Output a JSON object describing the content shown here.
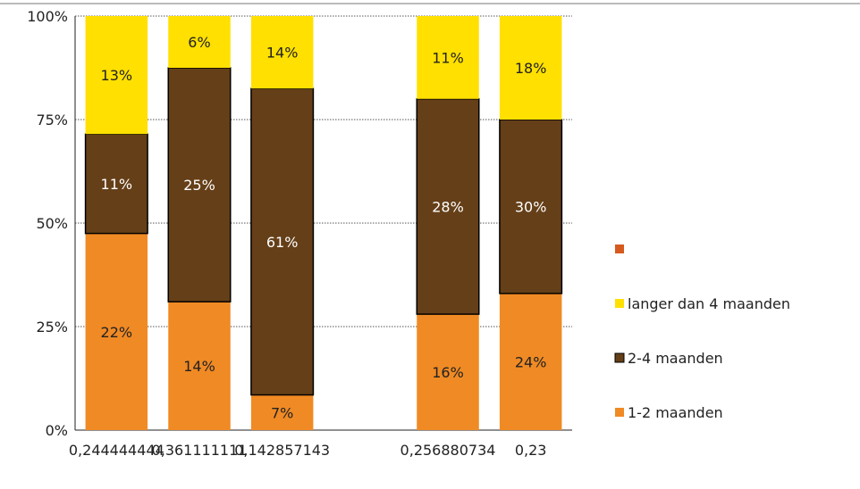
{
  "chart_data": {
    "type": "bar",
    "stacked": true,
    "categories": [
      "0,244444444",
      "0,361111111",
      "0,142857143",
      "",
      "0,256880734",
      "0,23"
    ],
    "series": [
      {
        "name": "1-2 maanden",
        "color": "#F08A24",
        "values": [
          47.5,
          31.0,
          8.5,
          null,
          28.0,
          33.0
        ],
        "labels": [
          "22%",
          "14%",
          "7%",
          "",
          "16%",
          "24%"
        ]
      },
      {
        "name": "2-4 maanden",
        "color": "#653F18",
        "values": [
          24.0,
          56.5,
          74.0,
          null,
          52.0,
          42.0
        ],
        "labels": [
          "11%",
          "25%",
          "61%",
          "",
          "28%",
          "30%"
        ]
      },
      {
        "name": "langer dan 4 maanden",
        "color": "#FFE000",
        "values": [
          28.5,
          12.5,
          17.5,
          null,
          20.0,
          25.0
        ],
        "labels": [
          "13%",
          "6%",
          "14%",
          "",
          "11%",
          "18%"
        ]
      }
    ],
    "legend_items": [
      {
        "name": "",
        "color": "#D65A1E"
      },
      {
        "name": "langer dan 4 maanden",
        "color": "#FFE000"
      },
      {
        "name": "2-4 maanden",
        "color": "#653F18"
      },
      {
        "name": "1-2 maanden",
        "color": "#F08A24"
      }
    ],
    "yticks": [
      "0%",
      "25%",
      "50%",
      "75%",
      "100%"
    ],
    "ylim": [
      0,
      100
    ],
    "grid": true,
    "legend_position": "right"
  }
}
